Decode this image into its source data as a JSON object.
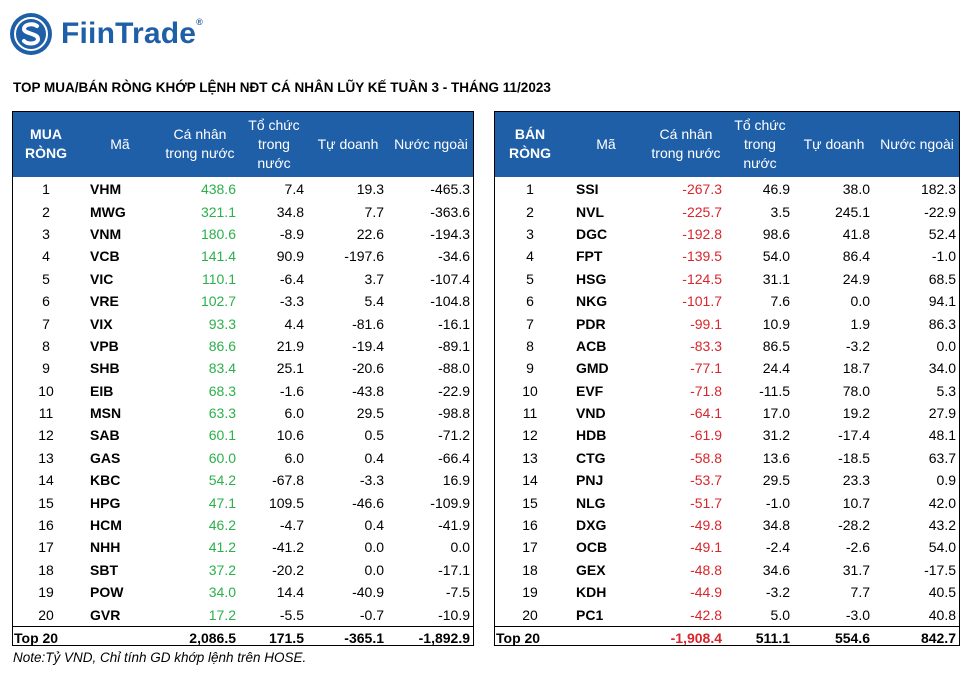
{
  "brand": {
    "name": "FiinTrade",
    "mark": "®",
    "logo_icon": "fiintrade-logo-icon"
  },
  "title": "TOP MUA/BÁN RÒNG KHỚP LỆNH NĐT CÁ NHÂN LŨY KẾ TUẦN 3 - THÁNG 11/2023",
  "colors": {
    "header_bg": "#1f5fa8",
    "buy_value": "#2bb04a",
    "sell_value": "#d7262c"
  },
  "buy_table": {
    "headers": {
      "rank": "MUA RÒNG",
      "code": "Mã",
      "retail": "Cá nhân trong nước",
      "institution": "Tổ chức trong nước",
      "proprietary": "Tự doanh",
      "foreign": "Nước ngoài"
    },
    "rows": [
      {
        "rank": "1",
        "code": "VHM",
        "retail": "438.6",
        "institution": "7.4",
        "proprietary": "19.3",
        "foreign": "-465.3"
      },
      {
        "rank": "2",
        "code": "MWG",
        "retail": "321.1",
        "institution": "34.8",
        "proprietary": "7.7",
        "foreign": "-363.6"
      },
      {
        "rank": "3",
        "code": "VNM",
        "retail": "180.6",
        "institution": "-8.9",
        "proprietary": "22.6",
        "foreign": "-194.3"
      },
      {
        "rank": "4",
        "code": "VCB",
        "retail": "141.4",
        "institution": "90.9",
        "proprietary": "-197.6",
        "foreign": "-34.6"
      },
      {
        "rank": "5",
        "code": "VIC",
        "retail": "110.1",
        "institution": "-6.4",
        "proprietary": "3.7",
        "foreign": "-107.4"
      },
      {
        "rank": "6",
        "code": "VRE",
        "retail": "102.7",
        "institution": "-3.3",
        "proprietary": "5.4",
        "foreign": "-104.8"
      },
      {
        "rank": "7",
        "code": "VIX",
        "retail": "93.3",
        "institution": "4.4",
        "proprietary": "-81.6",
        "foreign": "-16.1"
      },
      {
        "rank": "8",
        "code": "VPB",
        "retail": "86.6",
        "institution": "21.9",
        "proprietary": "-19.4",
        "foreign": "-89.1"
      },
      {
        "rank": "9",
        "code": "SHB",
        "retail": "83.4",
        "institution": "25.1",
        "proprietary": "-20.6",
        "foreign": "-88.0"
      },
      {
        "rank": "10",
        "code": "EIB",
        "retail": "68.3",
        "institution": "-1.6",
        "proprietary": "-43.8",
        "foreign": "-22.9"
      },
      {
        "rank": "11",
        "code": "MSN",
        "retail": "63.3",
        "institution": "6.0",
        "proprietary": "29.5",
        "foreign": "-98.8"
      },
      {
        "rank": "12",
        "code": "SAB",
        "retail": "60.1",
        "institution": "10.6",
        "proprietary": "0.5",
        "foreign": "-71.2"
      },
      {
        "rank": "13",
        "code": "GAS",
        "retail": "60.0",
        "institution": "6.0",
        "proprietary": "0.4",
        "foreign": "-66.4"
      },
      {
        "rank": "14",
        "code": "KBC",
        "retail": "54.2",
        "institution": "-67.8",
        "proprietary": "-3.3",
        "foreign": "16.9"
      },
      {
        "rank": "15",
        "code": "HPG",
        "retail": "47.1",
        "institution": "109.5",
        "proprietary": "-46.6",
        "foreign": "-109.9"
      },
      {
        "rank": "16",
        "code": "HCM",
        "retail": "46.2",
        "institution": "-4.7",
        "proprietary": "0.4",
        "foreign": "-41.9"
      },
      {
        "rank": "17",
        "code": "NHH",
        "retail": "41.2",
        "institution": "-41.2",
        "proprietary": "0.0",
        "foreign": "0.0"
      },
      {
        "rank": "18",
        "code": "SBT",
        "retail": "37.2",
        "institution": "-20.2",
        "proprietary": "0.0",
        "foreign": "-17.1"
      },
      {
        "rank": "19",
        "code": "POW",
        "retail": "34.0",
        "institution": "14.4",
        "proprietary": "-40.9",
        "foreign": "-7.5"
      },
      {
        "rank": "20",
        "code": "GVR",
        "retail": "17.2",
        "institution": "-5.5",
        "proprietary": "-0.7",
        "foreign": "-10.9"
      }
    ],
    "total": {
      "label": "Top 20",
      "retail": "2,086.5",
      "institution": "171.5",
      "proprietary": "-365.1",
      "foreign": "-1,892.9"
    }
  },
  "sell_table": {
    "headers": {
      "rank": "BÁN RÒNG",
      "code": "Mã",
      "retail": "Cá nhân trong nước",
      "institution": "Tổ chức trong nước",
      "proprietary": "Tự doanh",
      "foreign": "Nước ngoài"
    },
    "rows": [
      {
        "rank": "1",
        "code": "SSI",
        "retail": "-267.3",
        "institution": "46.9",
        "proprietary": "38.0",
        "foreign": "182.3"
      },
      {
        "rank": "2",
        "code": "NVL",
        "retail": "-225.7",
        "institution": "3.5",
        "proprietary": "245.1",
        "foreign": "-22.9"
      },
      {
        "rank": "3",
        "code": "DGC",
        "retail": "-192.8",
        "institution": "98.6",
        "proprietary": "41.8",
        "foreign": "52.4"
      },
      {
        "rank": "4",
        "code": "FPT",
        "retail": "-139.5",
        "institution": "54.0",
        "proprietary": "86.4",
        "foreign": "-1.0"
      },
      {
        "rank": "5",
        "code": "HSG",
        "retail": "-124.5",
        "institution": "31.1",
        "proprietary": "24.9",
        "foreign": "68.5"
      },
      {
        "rank": "6",
        "code": "NKG",
        "retail": "-101.7",
        "institution": "7.6",
        "proprietary": "0.0",
        "foreign": "94.1"
      },
      {
        "rank": "7",
        "code": "PDR",
        "retail": "-99.1",
        "institution": "10.9",
        "proprietary": "1.9",
        "foreign": "86.3"
      },
      {
        "rank": "8",
        "code": "ACB",
        "retail": "-83.3",
        "institution": "86.5",
        "proprietary": "-3.2",
        "foreign": "0.0"
      },
      {
        "rank": "9",
        "code": "GMD",
        "retail": "-77.1",
        "institution": "24.4",
        "proprietary": "18.7",
        "foreign": "34.0"
      },
      {
        "rank": "10",
        "code": "EVF",
        "retail": "-71.8",
        "institution": "-11.5",
        "proprietary": "78.0",
        "foreign": "5.3"
      },
      {
        "rank": "11",
        "code": "VND",
        "retail": "-64.1",
        "institution": "17.0",
        "proprietary": "19.2",
        "foreign": "27.9"
      },
      {
        "rank": "12",
        "code": "HDB",
        "retail": "-61.9",
        "institution": "31.2",
        "proprietary": "-17.4",
        "foreign": "48.1"
      },
      {
        "rank": "13",
        "code": "CTG",
        "retail": "-58.8",
        "institution": "13.6",
        "proprietary": "-18.5",
        "foreign": "63.7"
      },
      {
        "rank": "14",
        "code": "PNJ",
        "retail": "-53.7",
        "institution": "29.5",
        "proprietary": "23.3",
        "foreign": "0.9"
      },
      {
        "rank": "15",
        "code": "NLG",
        "retail": "-51.7",
        "institution": "-1.0",
        "proprietary": "10.7",
        "foreign": "42.0"
      },
      {
        "rank": "16",
        "code": "DXG",
        "retail": "-49.8",
        "institution": "34.8",
        "proprietary": "-28.2",
        "foreign": "43.2"
      },
      {
        "rank": "17",
        "code": "OCB",
        "retail": "-49.1",
        "institution": "-2.4",
        "proprietary": "-2.6",
        "foreign": "54.0"
      },
      {
        "rank": "18",
        "code": "GEX",
        "retail": "-48.8",
        "institution": "34.6",
        "proprietary": "31.7",
        "foreign": "-17.5"
      },
      {
        "rank": "19",
        "code": "KDH",
        "retail": "-44.9",
        "institution": "-3.2",
        "proprietary": "7.7",
        "foreign": "40.5"
      },
      {
        "rank": "20",
        "code": "PC1",
        "retail": "-42.8",
        "institution": "5.0",
        "proprietary": "-3.0",
        "foreign": "40.8"
      }
    ],
    "total": {
      "label": "Top 20",
      "retail": "-1,908.4",
      "institution": "511.1",
      "proprietary": "554.6",
      "foreign": "842.7"
    }
  },
  "note": "Note:Tỷ VND,  Chỉ tính GD khớp lệnh trên HOSE."
}
